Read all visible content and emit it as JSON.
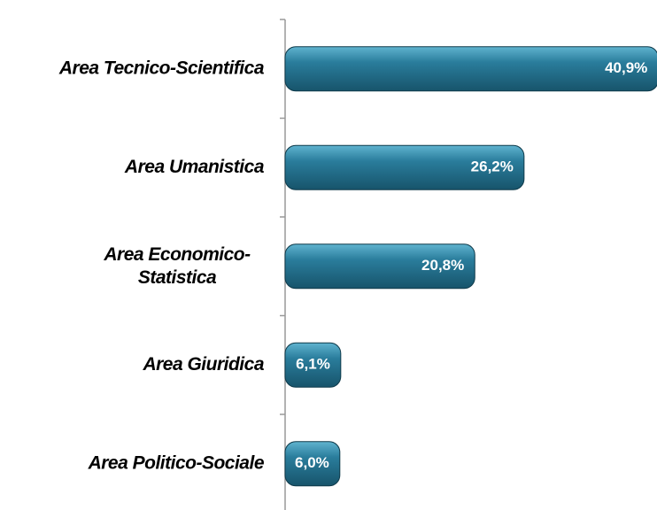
{
  "chart_data": {
    "type": "bar",
    "orientation": "horizontal",
    "categories": [
      "Area Tecnico-Scientifica",
      "Area Umanistica",
      "Area Economico-Statistica",
      "Area Giuridica",
      "Area Politico-Sociale"
    ],
    "values": [
      40.9,
      26.2,
      20.8,
      6.1,
      6.0
    ],
    "value_labels": [
      "40,9%",
      "26,2%",
      "20,8%",
      "6,1%",
      "6,0%"
    ],
    "color": "#2a7d9c"
  }
}
